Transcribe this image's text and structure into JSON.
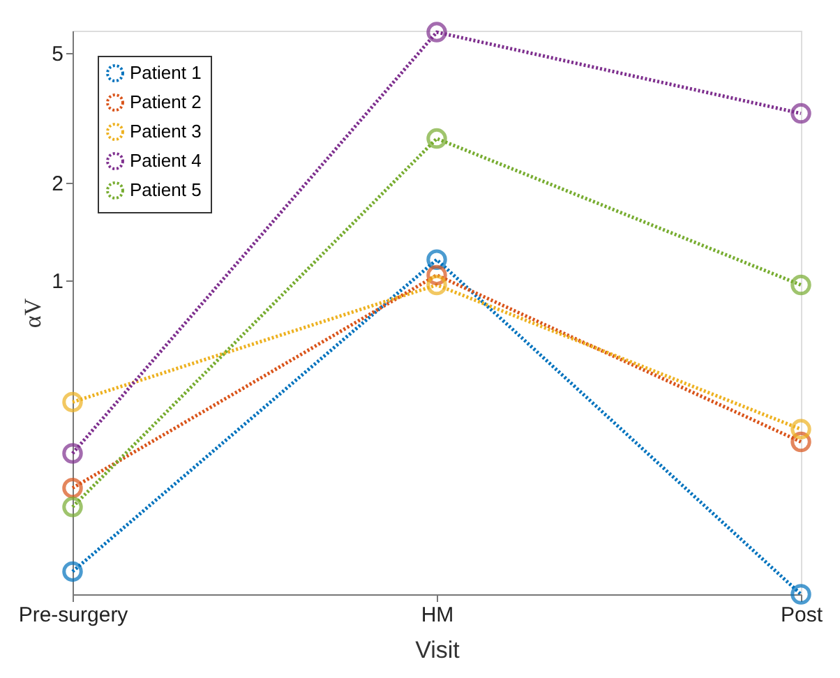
{
  "chart_data": {
    "type": "line",
    "xlabel": "Visit",
    "ylabel": "αV",
    "categories": [
      "Pre-surgery",
      "HM",
      "Post"
    ],
    "series": [
      {
        "name": "Patient 1",
        "color": "#0072bd",
        "values": [
          0.128,
          1.16,
          0.109
        ]
      },
      {
        "name": "Patient 2",
        "color": "#d95319",
        "values": [
          0.231,
          1.04,
          0.32
        ]
      },
      {
        "name": "Patient 3",
        "color": "#edb120",
        "values": [
          0.424,
          0.97,
          0.35
        ]
      },
      {
        "name": "Patient 4",
        "color": "#7e2f8e",
        "values": [
          0.295,
          5.79,
          3.26
        ]
      },
      {
        "name": "Patient 5",
        "color": "#77ac30",
        "values": [
          0.202,
          2.73,
          0.97
        ]
      }
    ],
    "log": true,
    "ylim": [
      0.109,
      5.85
    ],
    "yticks": [
      1,
      2,
      5
    ],
    "marker": "circle",
    "line_style": "dotted",
    "legend": "top left",
    "grid": false
  }
}
